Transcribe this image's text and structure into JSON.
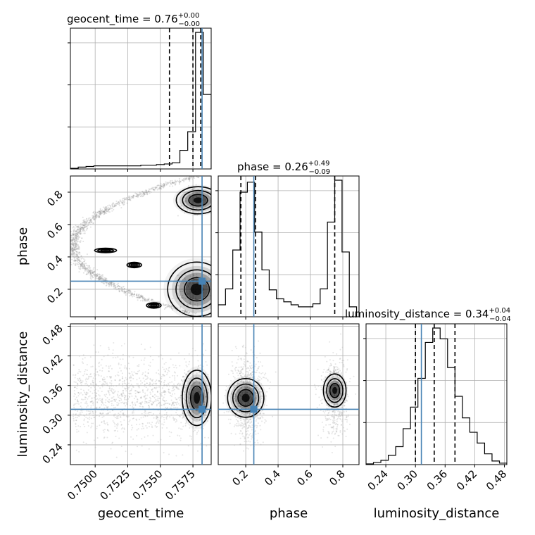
{
  "chart_data": {
    "type": "corner",
    "colors": {
      "truth": "#4682b4",
      "hist": "#000000",
      "grid": "#b0b0b0",
      "scatter": "#888888"
    },
    "parameters": [
      {
        "key": "geocent_time",
        "label": "geocent_time",
        "title_prefix": "geocent_time = ",
        "median": "0.76",
        "plus": "+0.00",
        "minus": "−0.00",
        "range": [
          0.7481,
          0.7589
        ],
        "truth": 0.7582,
        "quantiles": [
          0.7557,
          0.7575,
          0.7581
        ],
        "ticks": [
          0.75,
          0.7525,
          0.755,
          0.7575
        ],
        "tick_labels": [
          "0.7500",
          "0.7525",
          "0.7550",
          "0.7575"
        ]
      },
      {
        "key": "phase",
        "label": "phase",
        "title_prefix": "phase = ",
        "median": "0.26",
        "plus": "+0.49",
        "minus": "−0.09",
        "range": [
          0.03,
          0.9
        ],
        "truth": 0.25,
        "quantiles": [
          0.17,
          0.26,
          0.75
        ],
        "ticks": [
          0.2,
          0.4,
          0.6,
          0.8
        ],
        "tick_labels": [
          "0.2",
          "0.4",
          "0.6",
          "0.8"
        ]
      },
      {
        "key": "luminosity_distance",
        "label": "luminosity_distance",
        "title_prefix": "luminosity_distance = ",
        "median": "0.34",
        "plus": "+0.04",
        "minus": "−0.04",
        "range": [
          0.2,
          0.485
        ],
        "truth": 0.312,
        "quantiles": [
          0.3,
          0.338,
          0.38
        ],
        "ticks": [
          0.24,
          0.3,
          0.36,
          0.42,
          0.48
        ],
        "tick_labels": [
          "0.24",
          "0.30",
          "0.36",
          "0.42",
          "0.48"
        ]
      }
    ],
    "histograms": {
      "geocent_time": {
        "bins": [
          0.7481,
          0.7487,
          0.7493,
          0.7499,
          0.7505,
          0.7511,
          0.7517,
          0.7523,
          0.7529,
          0.7535,
          0.7541,
          0.7547,
          0.7553,
          0.7559,
          0.7565,
          0.7571,
          0.7577,
          0.7583,
          0.7589
        ],
        "counts": [
          1,
          3,
          4,
          5,
          5,
          5,
          5,
          5,
          5,
          6,
          6,
          7,
          8,
          10,
          30,
          60,
          220,
          120
        ]
      },
      "phase": {
        "bins": [
          0.03,
          0.075,
          0.12,
          0.165,
          0.21,
          0.255,
          0.3,
          0.345,
          0.39,
          0.435,
          0.48,
          0.525,
          0.57,
          0.615,
          0.66,
          0.705,
          0.75,
          0.795,
          0.84,
          0.885
        ],
        "counts": [
          12,
          28,
          67,
          125,
          135,
          85,
          47,
          27,
          18,
          15,
          12,
          10,
          10,
          13,
          28,
          95,
          137,
          65,
          10
        ]
      },
      "luminosity_distance": {
        "bins": [
          0.2,
          0.215,
          0.23,
          0.245,
          0.26,
          0.275,
          0.29,
          0.305,
          0.32,
          0.335,
          0.35,
          0.365,
          0.38,
          0.395,
          0.41,
          0.425,
          0.44,
          0.455,
          0.47,
          0.485
        ],
        "counts": [
          1,
          3,
          6,
          13,
          25,
          50,
          80,
          120,
          170,
          190,
          175,
          135,
          95,
          65,
          45,
          30,
          15,
          5,
          2
        ]
      }
    },
    "density_blobs": {
      "phase|geocent_time": [
        {
          "x": 0.7578,
          "y": 0.2,
          "w": 0.0008,
          "h": 0.06,
          "label": "high"
        },
        {
          "x": 0.7579,
          "y": 0.75,
          "w": 0.0006,
          "h": 0.03,
          "label": "high"
        },
        {
          "x": 0.7508,
          "y": 0.44,
          "w": 0.0003,
          "h": 0.005,
          "label": "mid"
        },
        {
          "x": 0.7545,
          "y": 0.1,
          "w": 0.0002,
          "h": 0.006,
          "label": "mid"
        },
        {
          "x": 0.753,
          "y": 0.35,
          "w": 0.0002,
          "h": 0.006,
          "label": "mid"
        }
      ],
      "luminosity_distance|geocent_time": [
        {
          "x": 0.7578,
          "y": 0.335,
          "w": 0.0004,
          "h": 0.02,
          "label": "high"
        }
      ],
      "luminosity_distance|phase": [
        {
          "x": 0.2,
          "y": 0.335,
          "w": 0.04,
          "h": 0.014,
          "label": "high"
        },
        {
          "x": 0.75,
          "y": 0.35,
          "w": 0.025,
          "h": 0.012,
          "label": "high"
        }
      ]
    }
  }
}
